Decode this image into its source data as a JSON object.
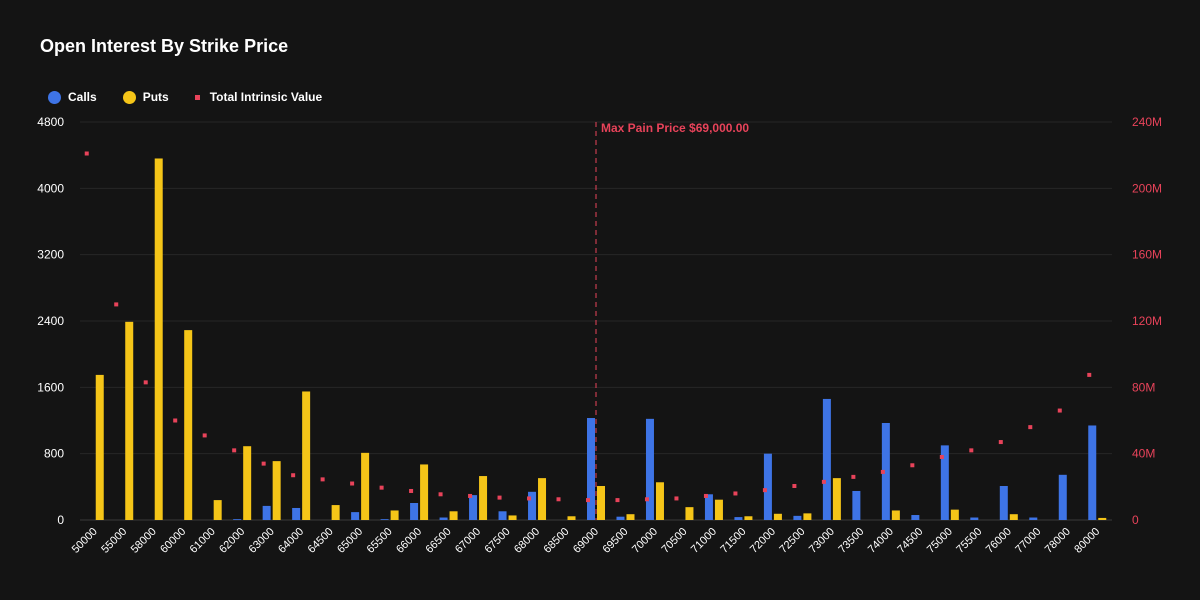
{
  "title": "Open Interest By Strike Price",
  "legend": {
    "calls": "Calls",
    "puts": "Puts",
    "intrinsic": "Total Intrinsic Value"
  },
  "colors": {
    "calls": "#3e74e6",
    "puts": "#f5c518",
    "intrinsic": "#e8435a",
    "background": "#141414",
    "grid": "#262626"
  },
  "chart_data": {
    "type": "bar",
    "title": "Open Interest By Strike Price",
    "categories": [
      "50000",
      "55000",
      "58000",
      "60000",
      "61000",
      "62000",
      "63000",
      "64000",
      "64500",
      "65000",
      "65500",
      "66000",
      "66500",
      "67000",
      "67500",
      "68000",
      "68500",
      "69000",
      "69500",
      "70000",
      "70500",
      "71000",
      "71500",
      "72000",
      "72500",
      "73000",
      "73500",
      "74000",
      "74500",
      "75000",
      "75500",
      "76000",
      "77000",
      "78000",
      "80000"
    ],
    "series": [
      {
        "name": "Calls",
        "axis": "left",
        "values": [
          0,
          0,
          0,
          0,
          0,
          10,
          170,
          145,
          0,
          95,
          10,
          205,
          30,
          300,
          105,
          340,
          0,
          1230,
          40,
          1220,
          0,
          310,
          35,
          800,
          50,
          1460,
          350,
          1170,
          60,
          900,
          30,
          410,
          30,
          545,
          1140
        ]
      },
      {
        "name": "Puts",
        "axis": "left",
        "values": [
          1750,
          2390,
          4360,
          2290,
          240,
          890,
          710,
          1550,
          180,
          810,
          115,
          670,
          105,
          530,
          55,
          505,
          45,
          410,
          70,
          455,
          155,
          245,
          45,
          75,
          80,
          505,
          0,
          115,
          0,
          125,
          0,
          70,
          0,
          0,
          25
        ]
      },
      {
        "name": "Total Intrinsic Value",
        "axis": "right",
        "type": "scatter",
        "values": [
          221000000,
          130000000,
          83000000,
          60000000,
          51000000,
          42000000,
          34000000,
          27000000,
          24500000,
          22000000,
          19500000,
          17500000,
          15500000,
          14500000,
          13500000,
          13000000,
          12500000,
          12000000,
          12000000,
          12500000,
          13000000,
          14500000,
          16000000,
          18000000,
          20500000,
          23000000,
          26000000,
          29000000,
          33000000,
          38000000,
          42000000,
          47000000,
          56000000,
          66000000,
          87500000
        ]
      }
    ],
    "y_left": {
      "min": 0,
      "max": 4800,
      "ticks": [
        "0",
        "800",
        "1600",
        "2400",
        "3200",
        "4000",
        "4800"
      ]
    },
    "y_right": {
      "min": 0,
      "max": 240000000,
      "ticks": [
        "0",
        "40M",
        "80M",
        "120M",
        "160M",
        "200M",
        "240M"
      ]
    },
    "grid": true,
    "legend_position": "top-left",
    "max_pain": {
      "strike": "69000",
      "label": "Max Pain Price $69,000.00"
    }
  }
}
